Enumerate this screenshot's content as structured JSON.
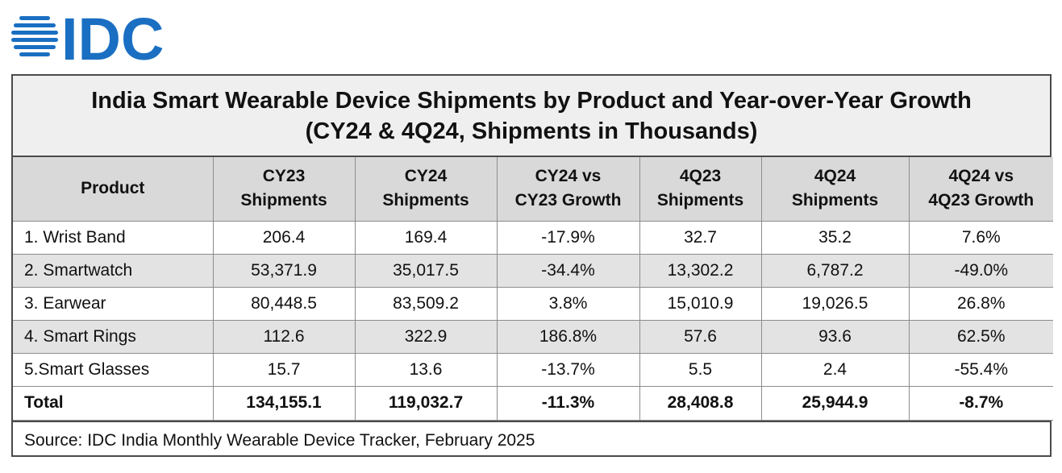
{
  "logo": {
    "text": "IDC",
    "color": "#1a6fc2"
  },
  "title": {
    "line1": "India Smart Wearable Device Shipments by Product and Year-over-Year Growth",
    "line2": "(CY24 & 4Q24, Shipments in Thousands)"
  },
  "columns": [
    {
      "line1": "Product",
      "line2": ""
    },
    {
      "line1": "CY23",
      "line2": "Shipments"
    },
    {
      "line1": "CY24",
      "line2": "Shipments"
    },
    {
      "line1": "CY24 vs",
      "line2": "CY23 Growth"
    },
    {
      "line1": "4Q23",
      "line2": "Shipments"
    },
    {
      "line1": "4Q24",
      "line2": "Shipments"
    },
    {
      "line1": "4Q24 vs",
      "line2": "4Q23 Growth"
    }
  ],
  "rows": [
    [
      "1. Wrist Band",
      "206.4",
      "169.4",
      "-17.9%",
      "32.7",
      "35.2",
      "7.6%"
    ],
    [
      "2. Smartwatch",
      "53,371.9",
      "35,017.5",
      "-34.4%",
      "13,302.2",
      "6,787.2",
      "-49.0%"
    ],
    [
      "3. Earwear",
      "80,448.5",
      "83,509.2",
      "3.8%",
      "15,010.9",
      "19,026.5",
      "26.8%"
    ],
    [
      "4. Smart Rings",
      "112.6",
      "322.9",
      "186.8%",
      "57.6",
      "93.6",
      "62.5%"
    ],
    [
      "5.Smart Glasses",
      "15.7",
      "13.6",
      "-13.7%",
      "5.5",
      "2.4",
      "-55.4%"
    ]
  ],
  "total": [
    "Total",
    "134,155.1",
    "119,032.7",
    "-11.3%",
    "28,408.8",
    "25,944.9",
    "-8.7%"
  ],
  "source": "Source: IDC India Monthly Wearable Device Tracker, February 2025",
  "chart_data": {
    "type": "table",
    "title": "India Smart Wearable Device Shipments by Product and Year-over-Year Growth",
    "subtitle": "(CY24 & 4Q24, Shipments in Thousands)",
    "columns": [
      "Product",
      "CY23 Shipments",
      "CY24 Shipments",
      "CY24 vs CY23 Growth",
      "4Q23 Shipments",
      "4Q24 Shipments",
      "4Q24 vs 4Q23 Growth"
    ],
    "rows": [
      [
        "1. Wrist Band",
        206.4,
        169.4,
        -17.9,
        32.7,
        35.2,
        7.6
      ],
      [
        "2. Smartwatch",
        53371.9,
        35017.5,
        -34.4,
        13302.2,
        6787.2,
        -49.0
      ],
      [
        "3. Earwear",
        80448.5,
        83509.2,
        3.8,
        15010.9,
        19026.5,
        26.8
      ],
      [
        "4. Smart Rings",
        112.6,
        322.9,
        186.8,
        57.6,
        93.6,
        62.5
      ],
      [
        "5.Smart Glasses",
        15.7,
        13.6,
        -13.7,
        5.5,
        2.4,
        -55.4
      ],
      [
        "Total",
        134155.1,
        119032.7,
        -11.3,
        28408.8,
        25944.9,
        -8.7
      ]
    ]
  }
}
